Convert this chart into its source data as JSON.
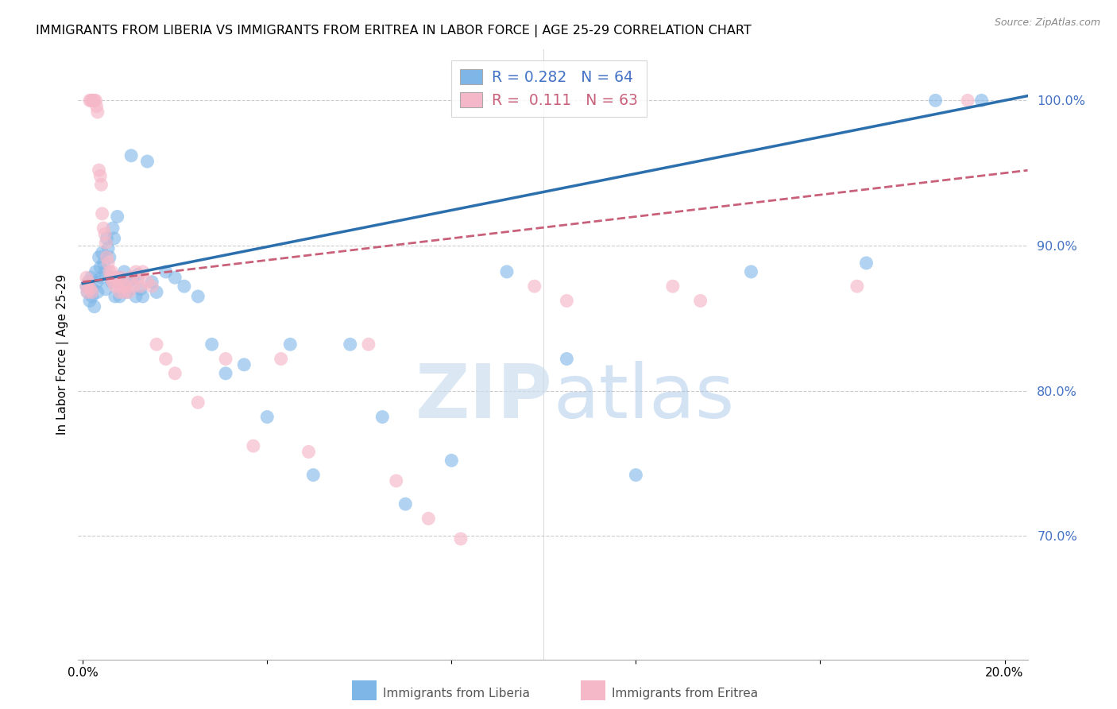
{
  "title": "IMMIGRANTS FROM LIBERIA VS IMMIGRANTS FROM ERITREA IN LABOR FORCE | AGE 25-29 CORRELATION CHART",
  "source": "Source: ZipAtlas.com",
  "ylabel": "In Labor Force | Age 25-29",
  "ylim": [
    0.615,
    1.035
  ],
  "xlim": [
    -0.001,
    0.205
  ],
  "yticks": [
    0.7,
    0.8,
    0.9,
    1.0
  ],
  "xticks": [
    0.0,
    0.04,
    0.08,
    0.12,
    0.16,
    0.2
  ],
  "blue_color": "#7eb6e8",
  "pink_color": "#f5b8c8",
  "trendline_blue": "#2c6fad",
  "trendline_pink": "#c9607a",
  "right_axis_color": "#4472c4",
  "watermark_zip": "ZIP",
  "watermark_atlas": "atlas",
  "liberia_x": [
    0.0008,
    0.001,
    0.0012,
    0.0015,
    0.0018,
    0.002,
    0.0022,
    0.0025,
    0.0028,
    0.003,
    0.0032,
    0.0035,
    0.0038,
    0.004,
    0.0042,
    0.0045,
    0.0048,
    0.005,
    0.0052,
    0.0055,
    0.0058,
    0.006,
    0.0063,
    0.0065,
    0.0068,
    0.007,
    0.0075,
    0.0078,
    0.008,
    0.0085,
    0.0088,
    0.009,
    0.0095,
    0.01,
    0.0105,
    0.011,
    0.0115,
    0.012,
    0.0125,
    0.013,
    0.014,
    0.015,
    0.016,
    0.018,
    0.02,
    0.022,
    0.025,
    0.028,
    0.031,
    0.035,
    0.04,
    0.045,
    0.05,
    0.058,
    0.065,
    0.07,
    0.08,
    0.092,
    0.105,
    0.12,
    0.145,
    0.17,
    0.185,
    0.195
  ],
  "liberia_y": [
    0.872,
    0.868,
    0.875,
    0.862,
    0.878,
    0.865,
    0.87,
    0.858,
    0.882,
    0.875,
    0.868,
    0.892,
    0.885,
    0.878,
    0.895,
    0.888,
    0.882,
    0.87,
    0.905,
    0.898,
    0.892,
    0.878,
    0.875,
    0.912,
    0.905,
    0.865,
    0.92,
    0.878,
    0.865,
    0.875,
    0.87,
    0.882,
    0.868,
    0.875,
    0.962,
    0.878,
    0.865,
    0.88,
    0.87,
    0.865,
    0.958,
    0.875,
    0.868,
    0.882,
    0.878,
    0.872,
    0.865,
    0.832,
    0.812,
    0.818,
    0.782,
    0.832,
    0.742,
    0.832,
    0.782,
    0.722,
    0.752,
    0.882,
    0.822,
    0.742,
    0.882,
    0.888,
    1.0,
    1.0
  ],
  "eritrea_x": [
    0.0008,
    0.001,
    0.0015,
    0.0018,
    0.002,
    0.0022,
    0.0025,
    0.0028,
    0.003,
    0.0032,
    0.0035,
    0.0038,
    0.004,
    0.0042,
    0.0045,
    0.0048,
    0.005,
    0.0052,
    0.0055,
    0.0058,
    0.006,
    0.0063,
    0.0065,
    0.0068,
    0.007,
    0.0075,
    0.0078,
    0.008,
    0.0085,
    0.0088,
    0.009,
    0.0095,
    0.01,
    0.0105,
    0.011,
    0.0115,
    0.012,
    0.0125,
    0.013,
    0.014,
    0.015,
    0.016,
    0.018,
    0.02,
    0.025,
    0.031,
    0.037,
    0.043,
    0.049,
    0.062,
    0.068,
    0.075,
    0.082,
    0.098,
    0.105,
    0.128,
    0.134,
    0.168,
    0.192,
    0.0008,
    0.0012,
    0.0016,
    0.002
  ],
  "eritrea_y": [
    0.872,
    0.868,
    1.0,
    1.0,
    1.0,
    1.0,
    1.0,
    1.0,
    0.996,
    0.992,
    0.952,
    0.948,
    0.942,
    0.922,
    0.912,
    0.908,
    0.902,
    0.892,
    0.888,
    0.882,
    0.878,
    0.882,
    0.875,
    0.878,
    0.872,
    0.878,
    0.872,
    0.868,
    0.878,
    0.872,
    0.868,
    0.872,
    0.868,
    0.878,
    0.872,
    0.882,
    0.878,
    0.872,
    0.882,
    0.875,
    0.872,
    0.832,
    0.822,
    0.812,
    0.792,
    0.822,
    0.762,
    0.822,
    0.758,
    0.832,
    0.738,
    0.712,
    0.698,
    0.872,
    0.862,
    0.872,
    0.862,
    0.872,
    1.0,
    0.878,
    0.875,
    0.87,
    0.868
  ]
}
